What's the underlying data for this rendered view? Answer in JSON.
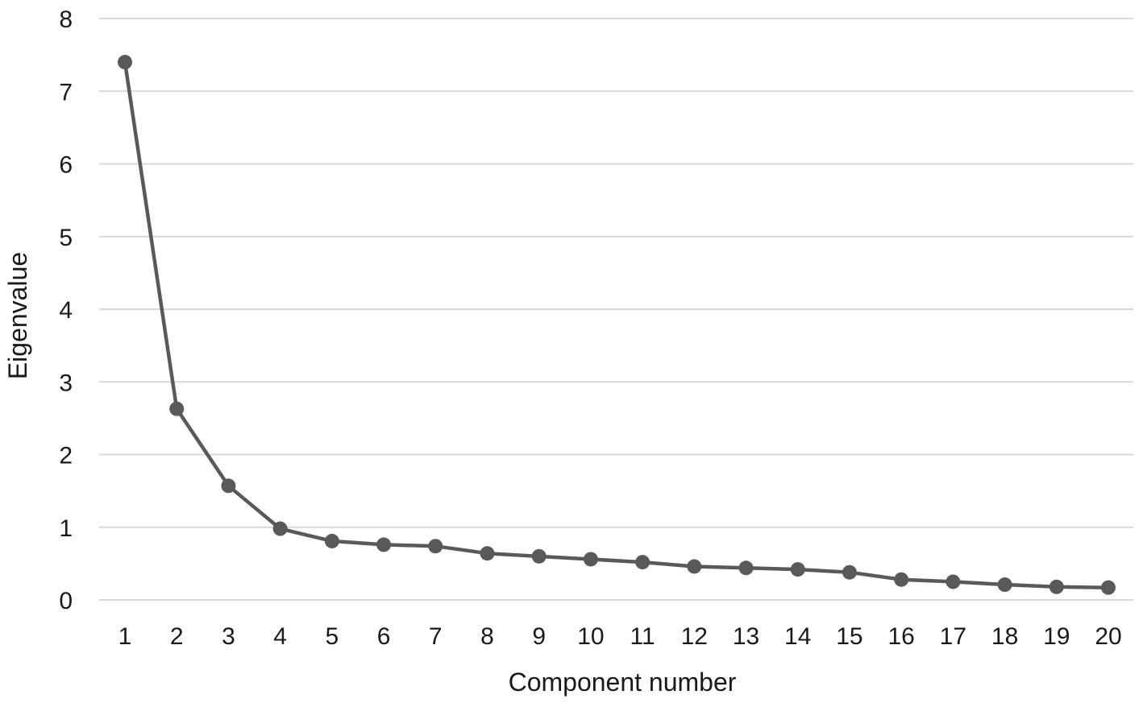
{
  "chart_data": {
    "type": "line",
    "xlabel": "Component number",
    "ylabel": "Eigenvalue",
    "x": [
      1,
      2,
      3,
      4,
      5,
      6,
      7,
      8,
      9,
      10,
      11,
      12,
      13,
      14,
      15,
      16,
      17,
      18,
      19,
      20
    ],
    "series": [
      {
        "values": [
          7.4,
          2.63,
          1.57,
          0.98,
          0.81,
          0.76,
          0.74,
          0.64,
          0.6,
          0.56,
          0.52,
          0.46,
          0.44,
          0.42,
          0.38,
          0.28,
          0.25,
          0.21,
          0.18,
          0.17
        ]
      }
    ],
    "ylim": [
      0,
      8
    ],
    "yticks": [
      0,
      1,
      2,
      3,
      4,
      5,
      6,
      7,
      8
    ],
    "grid": "horizontal",
    "legend": "none",
    "colors": {
      "line": "#595959",
      "marker": "#595959",
      "grid": "#d9d9d9",
      "axis": "#d9d9d9"
    }
  }
}
